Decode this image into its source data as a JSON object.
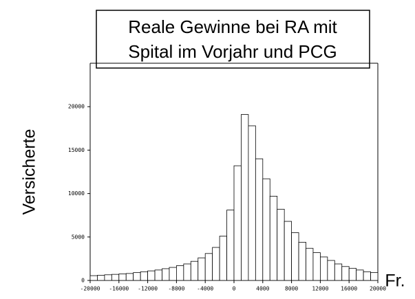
{
  "chart_data": {
    "type": "histogram",
    "title": [
      "Reale Gewinne bei RA mit",
      "Spital im Vorjahr und PCG"
    ],
    "y_label": "Versicherte",
    "x_label": "Fr.",
    "bins": [
      -20000,
      -19000,
      -18000,
      -17000,
      -16000,
      -15000,
      -14000,
      -13000,
      -12000,
      -11000,
      -10000,
      -9000,
      -8000,
      -7000,
      -6000,
      -5000,
      -4000,
      -3000,
      -2000,
      -1000,
      0,
      1000,
      2000,
      3000,
      4000,
      5000,
      6000,
      7000,
      8000,
      9000,
      10000,
      11000,
      12000,
      13000,
      14000,
      15000,
      16000,
      17000,
      18000,
      19000,
      20000
    ],
    "values": [
      550,
      600,
      650,
      700,
      750,
      800,
      900,
      1000,
      1100,
      1200,
      1350,
      1500,
      1700,
      1900,
      2200,
      2600,
      3100,
      3800,
      5100,
      8100,
      13200,
      19100,
      17800,
      14000,
      11700,
      9700,
      8200,
      6800,
      5500,
      4400,
      3700,
      3200,
      2700,
      2300,
      1900,
      1600,
      1400,
      1200,
      1000,
      900
    ],
    "color": "#ffffff",
    "xlim": [
      -20000,
      20000
    ],
    "xticks": [
      -20000,
      -16000,
      -12000,
      -8000,
      -4000,
      0,
      4000,
      8000,
      12000,
      16000,
      20000
    ],
    "ylim": [
      0,
      25000
    ],
    "yticks": [
      0,
      5000,
      10000,
      15000,
      20000
    ]
  }
}
